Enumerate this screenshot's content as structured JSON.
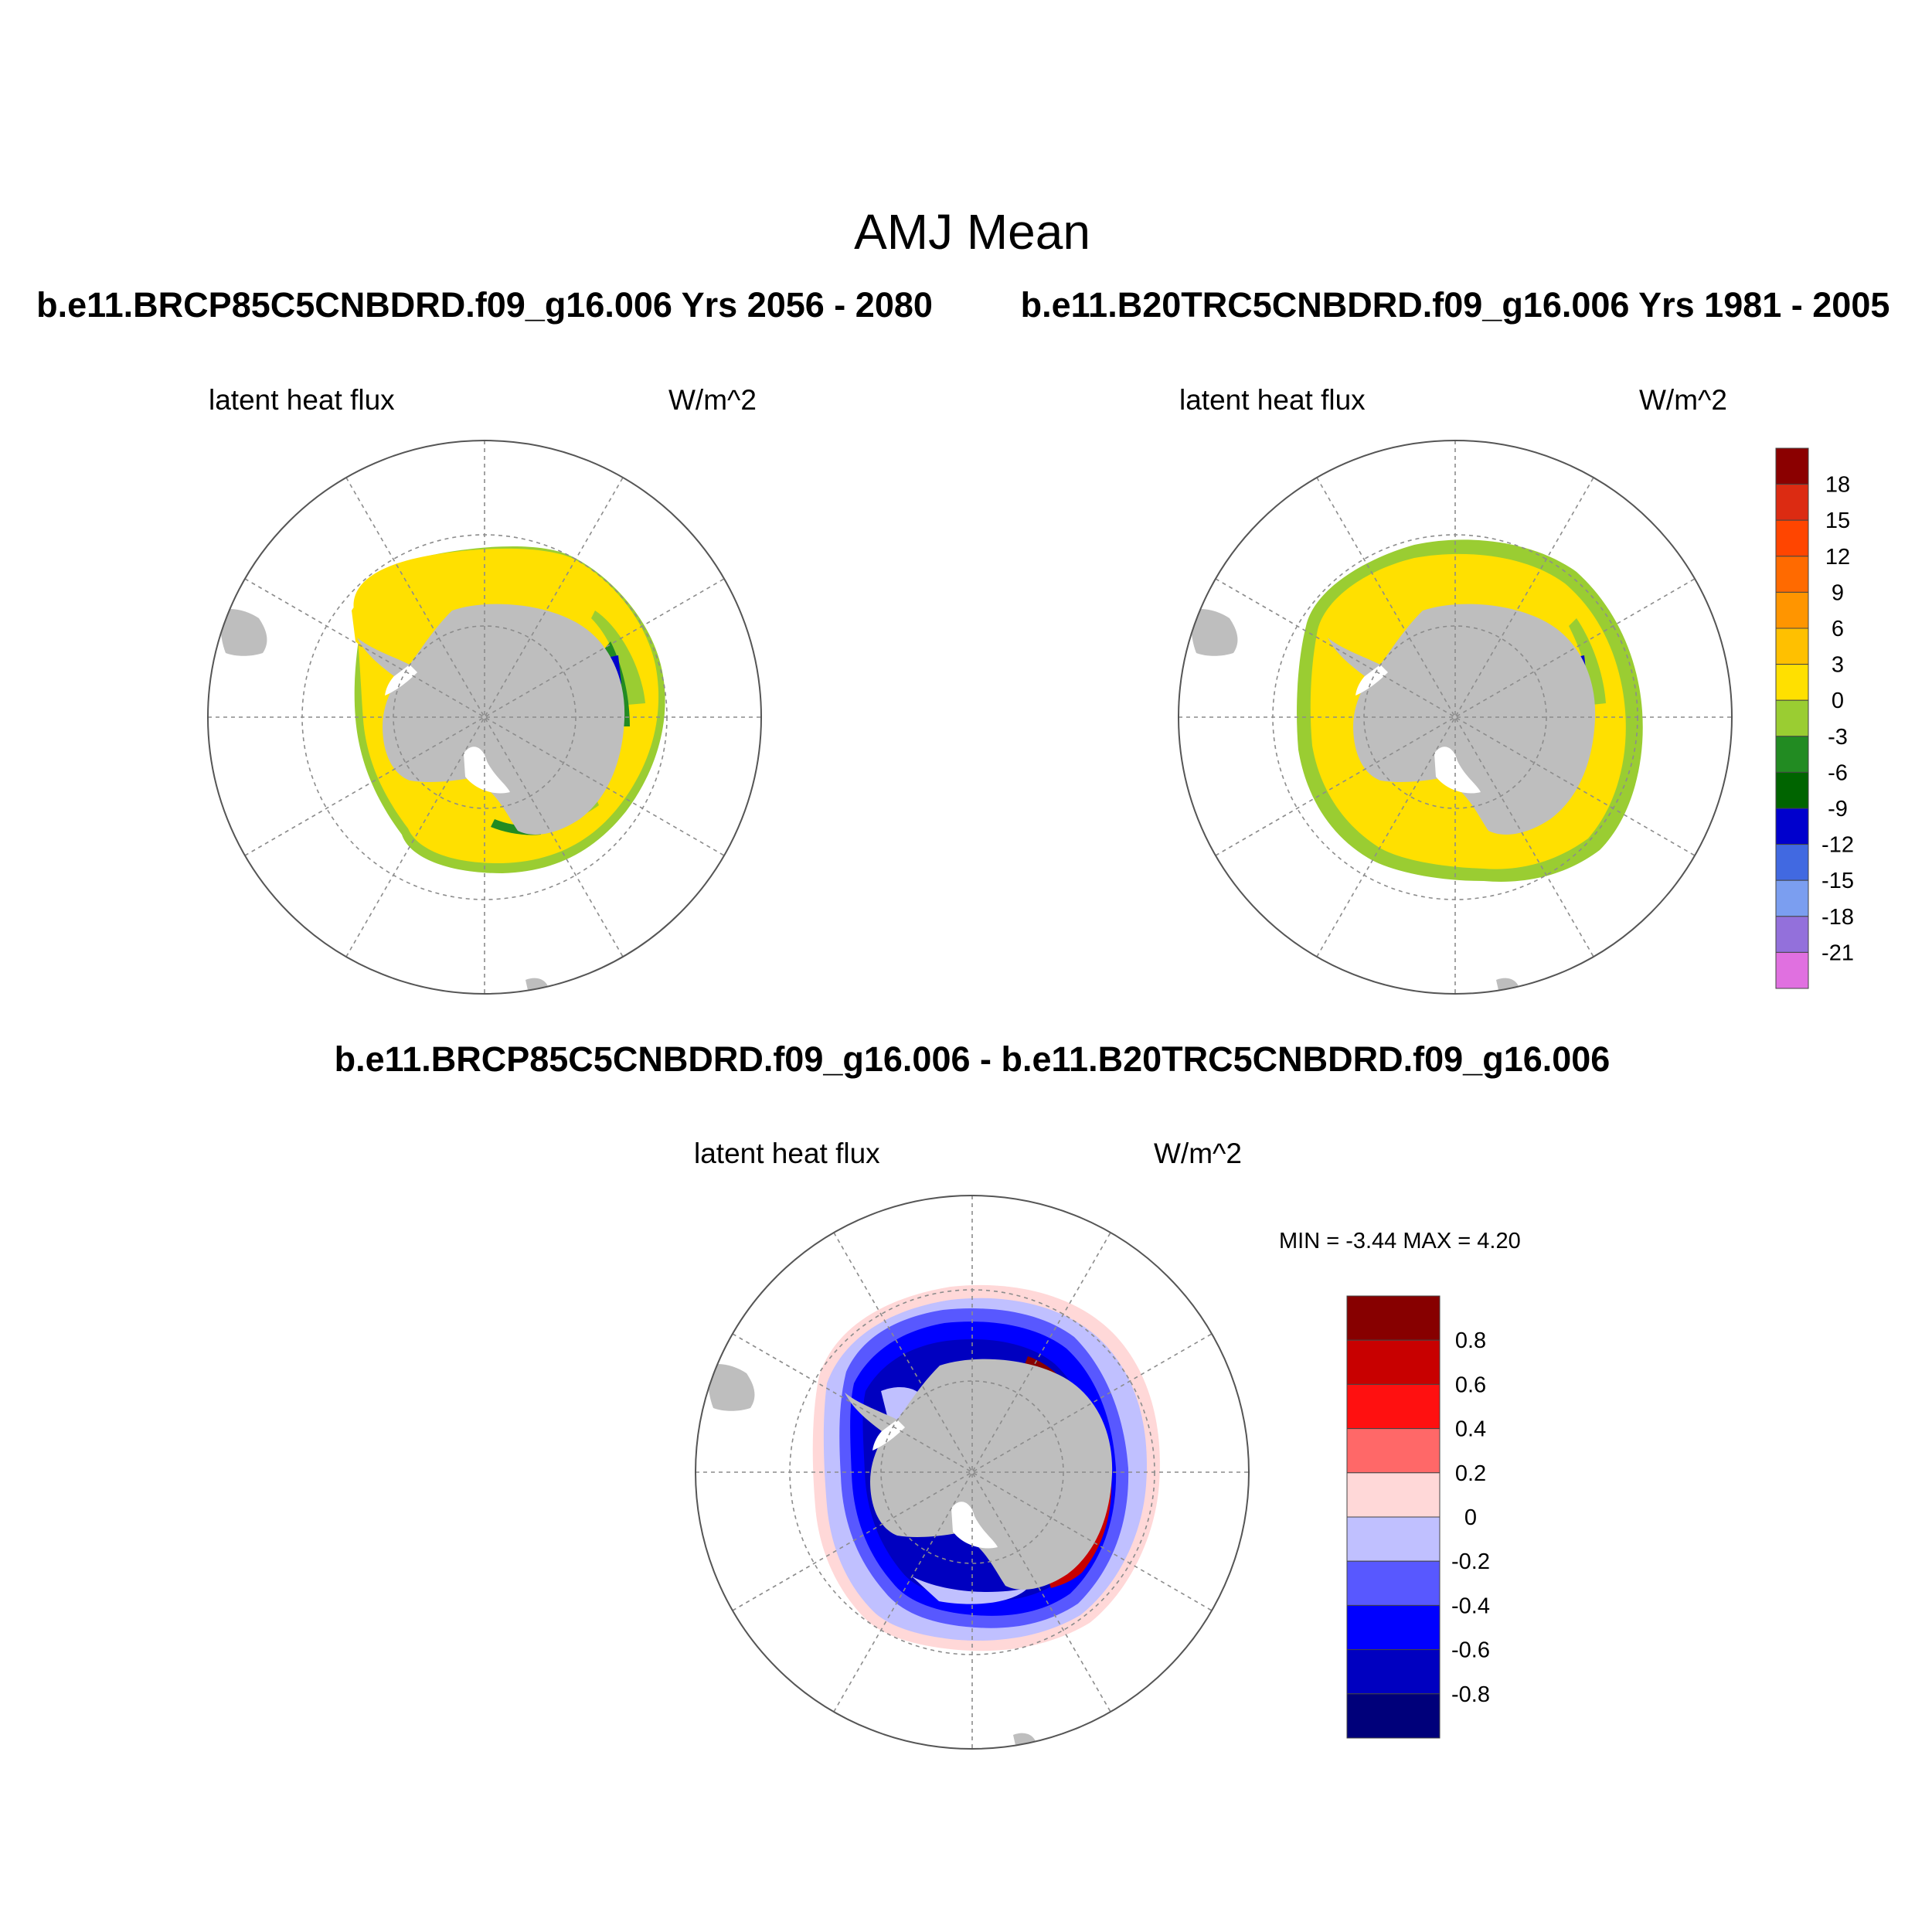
{
  "title": "AMJ Mean",
  "colors": {
    "land": "#bebebe",
    "ice_shelf": "#ffffff",
    "gridline": "#8c8c8c",
    "frame": "#555555"
  },
  "panels": [
    {
      "id": "top-left",
      "case_title": "b.e11.BRCP85C5CNBDRD.f09_g16.006  Yrs 2056 - 2080",
      "variable": "latent heat flux",
      "units": "W/m^2"
    },
    {
      "id": "top-right",
      "case_title": "b.e11.B20TRC5CNBDRD.f09_g16.006  Yrs 1981 - 2005",
      "variable": "latent heat flux",
      "units": "W/m^2"
    },
    {
      "id": "bottom",
      "case_title": "b.e11.BRCP85C5CNBDRD.f09_g16.006 - b.e11.B20TRC5CNBDRD.f09_g16.006",
      "variable": "latent heat flux",
      "units": "W/m^2",
      "min_max": "MIN =  -3.44 MAX =   4.20"
    }
  ],
  "colorbar_absolute": {
    "labels": [
      "18",
      "15",
      "12",
      "9",
      "6",
      "3",
      "0",
      "-3",
      "-6",
      "-9",
      "-12",
      "-15",
      "-18",
      "-21"
    ],
    "colors": [
      "#8b0000",
      "#dc2b12",
      "#ff4500",
      "#ff6a00",
      "#ff9500",
      "#ffc000",
      "#ffe000",
      "#9acd32",
      "#228b22",
      "#006400",
      "#0000cd",
      "#4169e1",
      "#7b9ef0",
      "#9370db",
      "#e070e0"
    ]
  },
  "colorbar_diff": {
    "labels": [
      "0.8",
      "0.6",
      "0.4",
      "0.2",
      "0",
      "-0.2",
      "-0.4",
      "-0.6",
      "-0.8"
    ],
    "colors": [
      "#870000",
      "#c80000",
      "#ff1010",
      "#ff6868",
      "#ffd8d8",
      "#c0c0ff",
      "#5858ff",
      "#0000ff",
      "#0000c0",
      "#00007a"
    ]
  },
  "chart_data": [
    {
      "type": "heatmap",
      "title": "b.e11.BRCP85C5CNBDRD.f09_g16.006  Yrs 2056 - 2080",
      "variable": "latent heat flux",
      "units": "W/m^2",
      "projection": "south polar stereographic",
      "dominant_range": [
        0,
        3
      ],
      "edge_ranges": [
        [
          -3,
          0
        ],
        [
          -6,
          -3
        ],
        [
          -9,
          -6
        ]
      ]
    },
    {
      "type": "heatmap",
      "title": "b.e11.B20TRC5CNBDRD.f09_g16.006  Yrs 1981 - 2005",
      "variable": "latent heat flux",
      "units": "W/m^2",
      "projection": "south polar stereographic",
      "dominant_range": [
        0,
        3
      ],
      "edge_ranges": [
        [
          -3,
          0
        ],
        [
          -6,
          -3
        ],
        [
          -9,
          -6
        ]
      ]
    },
    {
      "type": "heatmap",
      "title": "b.e11.BRCP85C5CNBDRD.f09_g16.006 - b.e11.B20TRC5CNBDRD.f09_g16.006",
      "variable": "latent heat flux",
      "units": "W/m^2",
      "projection": "south polar stereographic",
      "min": -3.44,
      "max": 4.2
    }
  ]
}
